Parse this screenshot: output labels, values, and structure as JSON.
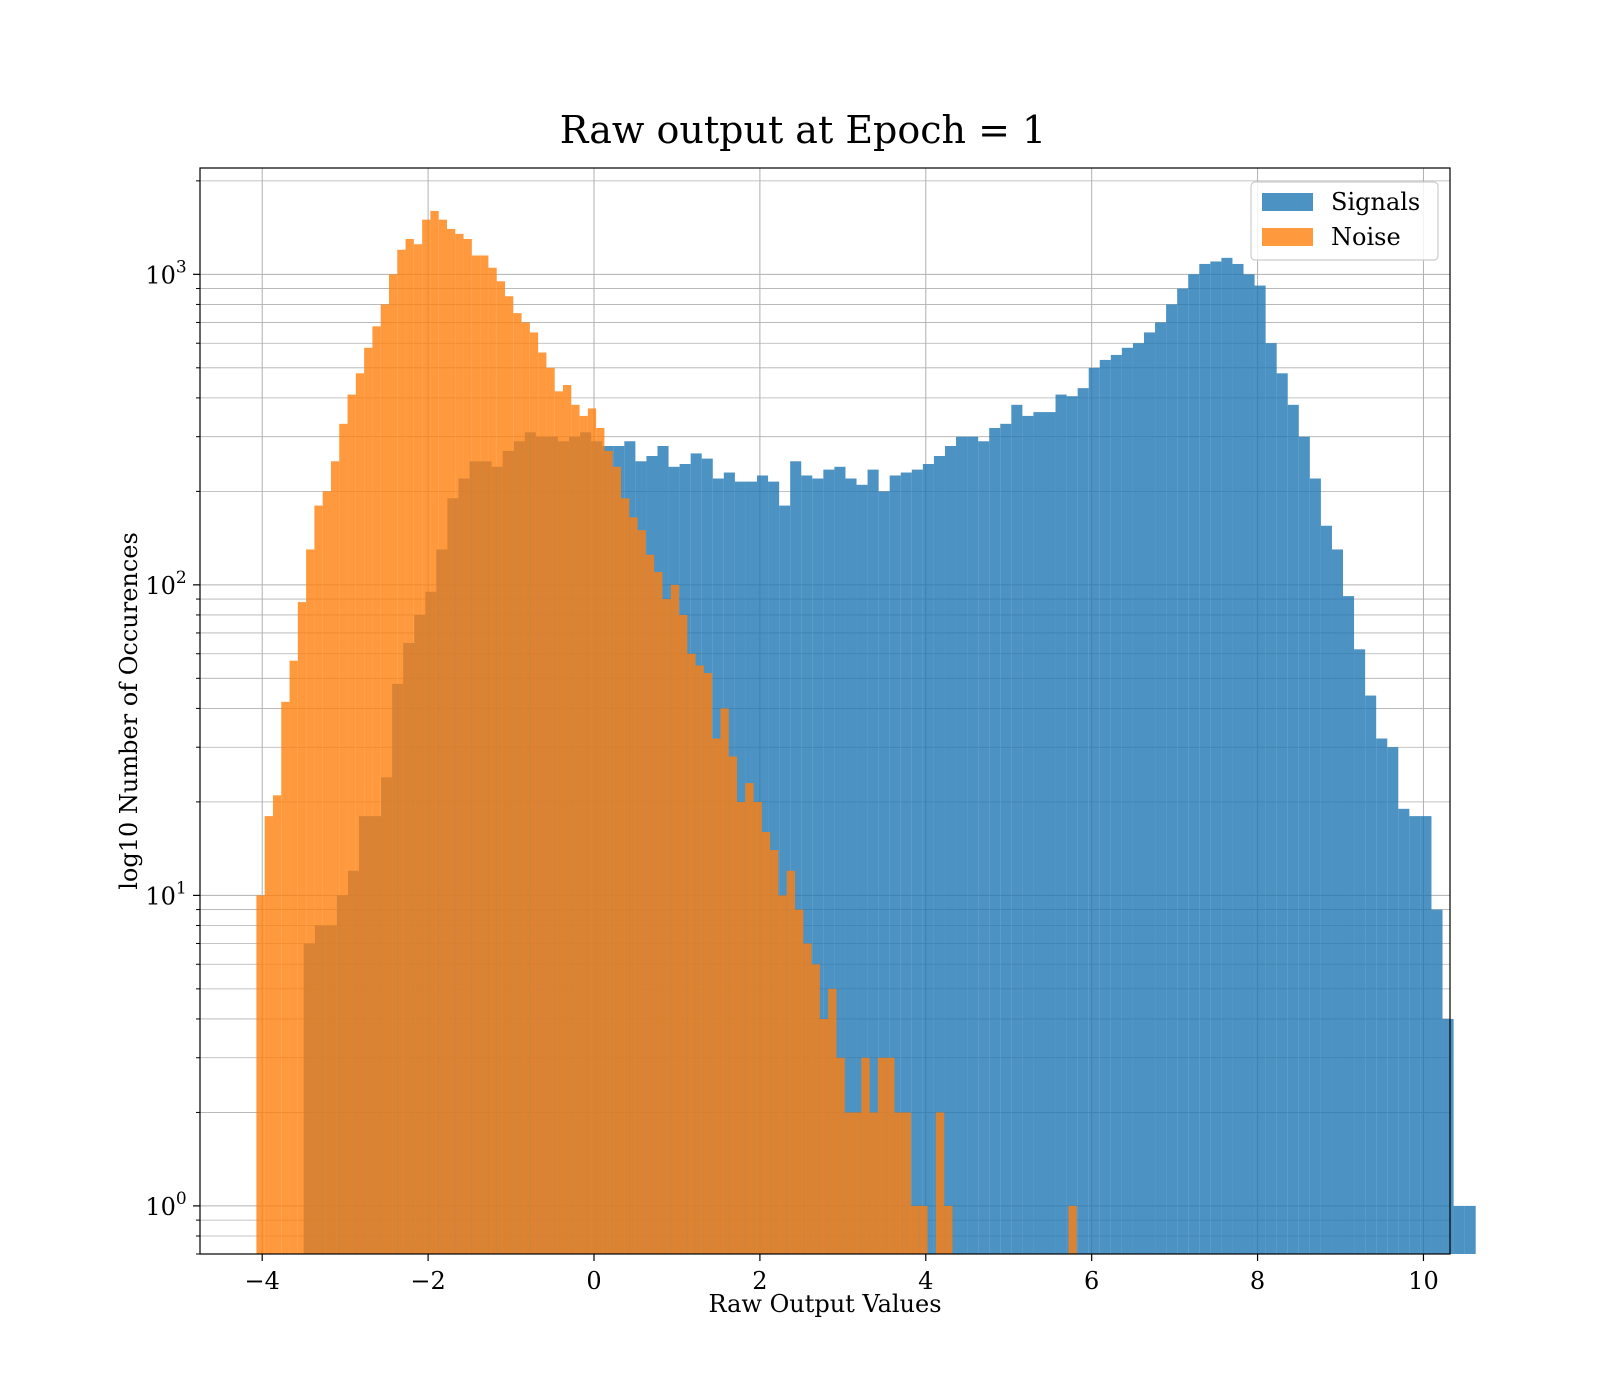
{
  "chart_data": {
    "type": "histogram",
    "title": "Raw output at Epoch = 1",
    "xlabel": "Raw Output Values",
    "ylabel": "log10 Number of Occurences",
    "xlim": [
      -4.75,
      10.32
    ],
    "ylim": [
      0.7,
      2200
    ],
    "yscale": "log",
    "grid": true,
    "legend_position": "top-right",
    "x_ticks": [
      {
        "value": -4,
        "label": "−4"
      },
      {
        "value": -2,
        "label": "−2"
      },
      {
        "value": 0,
        "label": "0"
      },
      {
        "value": 2,
        "label": "2"
      },
      {
        "value": 4,
        "label": "4"
      },
      {
        "value": 6,
        "label": "6"
      },
      {
        "value": 8,
        "label": "8"
      },
      {
        "value": 10,
        "label": "10"
      }
    ],
    "y_ticks": [
      {
        "value": 1,
        "base": "10",
        "exp": "0"
      },
      {
        "value": 10,
        "base": "10",
        "exp": "1"
      },
      {
        "value": 100,
        "base": "10",
        "exp": "2"
      },
      {
        "value": 1000,
        "base": "10",
        "exp": "3"
      }
    ],
    "series": [
      {
        "name": "Signals",
        "color": "#1f77b4",
        "opacity": 0.8,
        "bin_start": -3.5,
        "bin_width": 0.1333,
        "values": [
          7,
          8,
          8,
          10,
          12,
          18,
          18,
          24,
          48,
          65,
          80,
          95,
          130,
          190,
          220,
          250,
          250,
          240,
          270,
          290,
          310,
          300,
          300,
          290,
          300,
          310,
          290,
          280,
          280,
          290,
          250,
          260,
          280,
          240,
          245,
          265,
          255,
          220,
          230,
          215,
          215,
          225,
          215,
          180,
          250,
          225,
          220,
          235,
          240,
          220,
          210,
          235,
          200,
          225,
          230,
          235,
          245,
          260,
          280,
          300,
          300,
          290,
          320,
          330,
          380,
          350,
          360,
          360,
          410,
          405,
          430,
          500,
          530,
          550,
          580,
          600,
          650,
          700,
          800,
          900,
          1000,
          1080,
          1100,
          1130,
          1080,
          1000,
          920,
          600,
          480,
          380,
          300,
          220,
          155,
          130,
          92,
          62,
          44,
          32,
          30,
          19,
          18,
          18,
          9,
          4,
          1,
          1
        ]
      },
      {
        "name": "Noise",
        "color": "#ff7f0e",
        "opacity": 0.8,
        "bin_start": -4.07,
        "bin_width": 0.0999,
        "values": [
          10,
          18,
          21,
          42,
          57,
          88,
          130,
          180,
          200,
          250,
          330,
          410,
          480,
          580,
          680,
          800,
          1000,
          1200,
          1300,
          1250,
          1500,
          1600,
          1500,
          1400,
          1350,
          1300,
          1150,
          1150,
          1050,
          950,
          850,
          750,
          700,
          650,
          560,
          500,
          420,
          440,
          380,
          350,
          370,
          320,
          270,
          240,
          190,
          165,
          150,
          125,
          110,
          90,
          100,
          80,
          60,
          55,
          52,
          32,
          40,
          28,
          20,
          23,
          20,
          16,
          14,
          10,
          12,
          9,
          7,
          6,
          4,
          5,
          3,
          2,
          2,
          3,
          2,
          3,
          3,
          2,
          2,
          1,
          1,
          0,
          2,
          1,
          0,
          0,
          0,
          0,
          0,
          0,
          0,
          0,
          0,
          0,
          0,
          0,
          0,
          0,
          1
        ]
      }
    ]
  }
}
